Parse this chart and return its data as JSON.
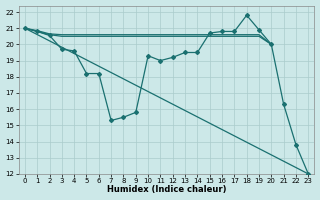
{
  "xlabel": "Humidex (Indice chaleur)",
  "bg_color": "#cce8e8",
  "grid_color": "#aacccc",
  "line_color": "#1a7070",
  "xlim": [
    -0.5,
    23.5
  ],
  "ylim": [
    12,
    22.4
  ],
  "yticks": [
    12,
    13,
    14,
    15,
    16,
    17,
    18,
    19,
    20,
    21,
    22
  ],
  "xticks": [
    0,
    1,
    2,
    3,
    4,
    5,
    6,
    7,
    8,
    9,
    10,
    11,
    12,
    13,
    14,
    15,
    16,
    17,
    18,
    19,
    20,
    21,
    22,
    23
  ],
  "series1_x": [
    0,
    1,
    2,
    3,
    4,
    5,
    6,
    7,
    8,
    9,
    10,
    11,
    12,
    13,
    14,
    15,
    16,
    17,
    18,
    19,
    20
  ],
  "series1_y": [
    21,
    20.85,
    20.65,
    20.6,
    20.6,
    20.6,
    20.6,
    20.6,
    20.6,
    20.6,
    20.6,
    20.6,
    20.6,
    20.6,
    20.6,
    20.6,
    20.6,
    20.6,
    20.6,
    20.6,
    20.0
  ],
  "series2_x": [
    0,
    2,
    3,
    4,
    5,
    6,
    7,
    8,
    9,
    10,
    11,
    12,
    13,
    14,
    15,
    16,
    17,
    18,
    19,
    20
  ],
  "series2_y": [
    21,
    20.6,
    20.5,
    20.5,
    20.5,
    20.5,
    20.5,
    20.5,
    20.5,
    20.5,
    20.5,
    20.5,
    20.5,
    20.5,
    20.5,
    20.5,
    20.5,
    20.5,
    20.5,
    20.0
  ],
  "series3_x": [
    0,
    1,
    2,
    3,
    4,
    5,
    6,
    7,
    8,
    9,
    10,
    11,
    12,
    13,
    14,
    15,
    16,
    17,
    18,
    19,
    20,
    21,
    22,
    23
  ],
  "series3_y": [
    21,
    20.8,
    20.55,
    19.7,
    19.6,
    18.2,
    18.2,
    15.3,
    15.5,
    15.8,
    19.3,
    19.0,
    19.2,
    19.5,
    19.5,
    20.7,
    20.8,
    20.8,
    21.8,
    20.9,
    20.0,
    16.3,
    13.8,
    12.0
  ],
  "series4_x": [
    0,
    23
  ],
  "series4_y": [
    21,
    12.0
  ]
}
